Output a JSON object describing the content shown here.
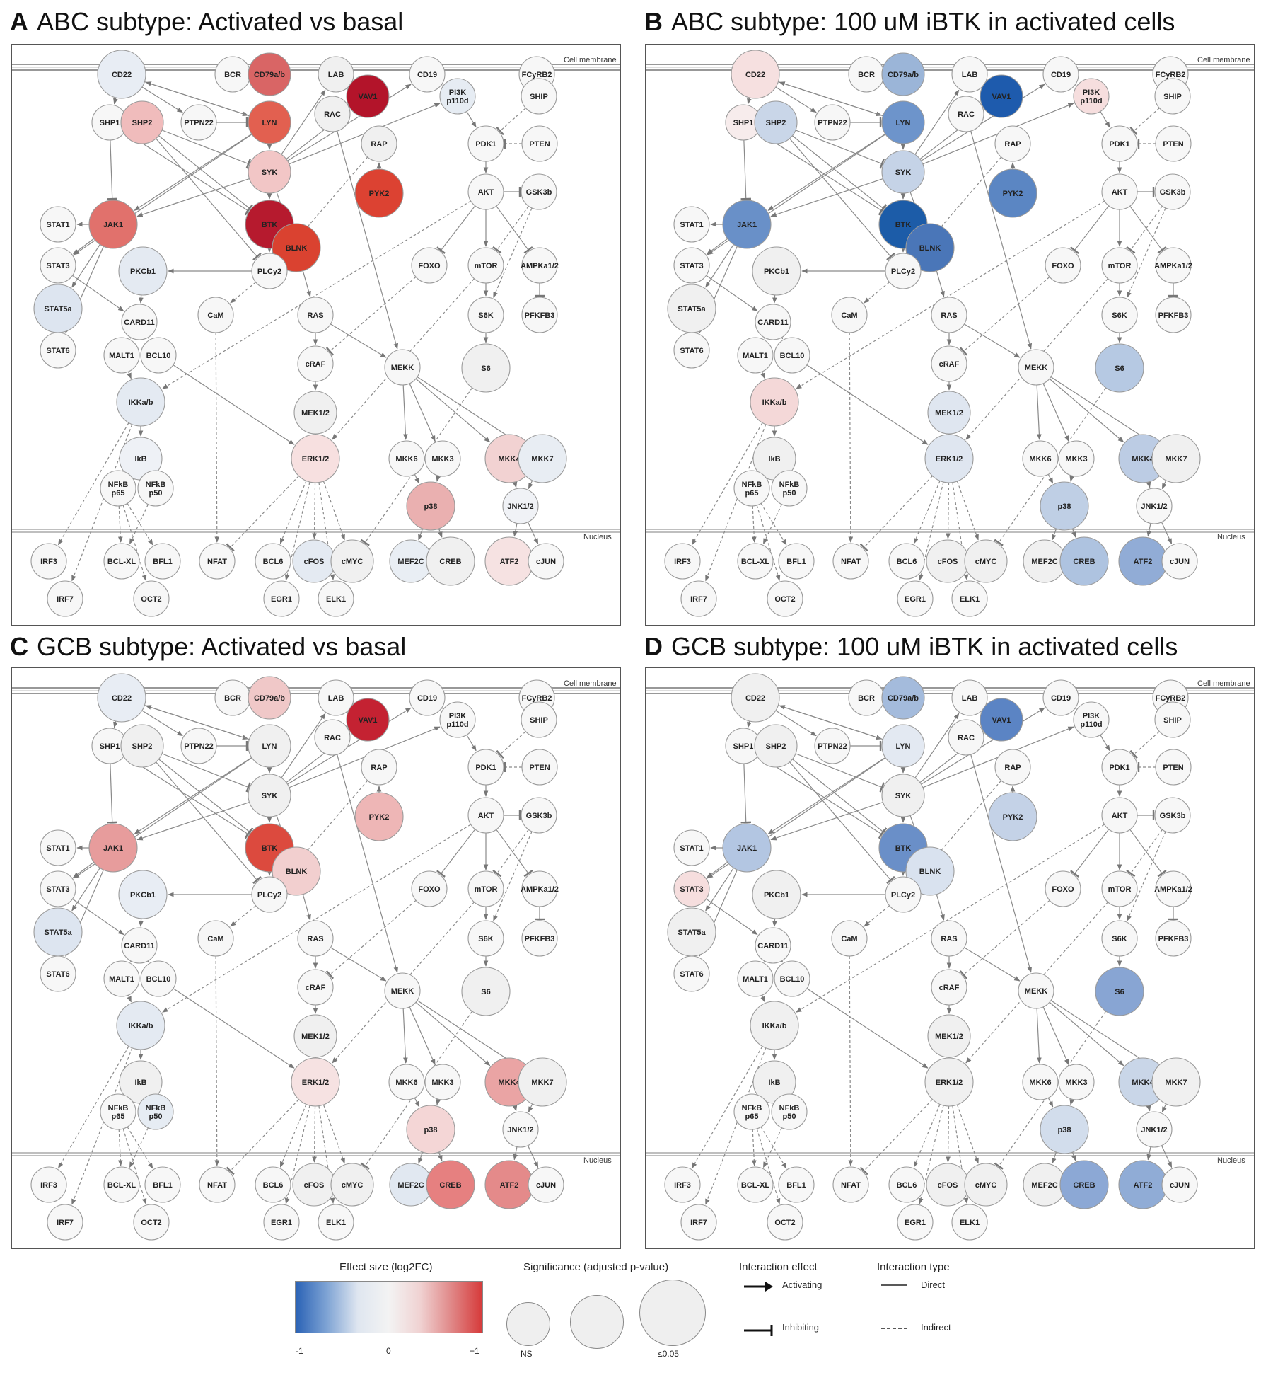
{
  "panels": [
    {
      "id": "A",
      "letter": "A",
      "title": "ABC subtype: Activated vs basal",
      "colors": {
        "CD22": "#e8edf4",
        "CD79a/b": "#d96565",
        "LAB": "#f0f0f0",
        "VAV1": "#b3142a",
        "CD19": "#f7f7f7",
        "SHP1": "#f7f7f7",
        "SHP2": "#f0bcbc",
        "LYN": "#e26050",
        "RAC": "#f0f0f0",
        "PI3K p110d": "#e6ecf3",
        "SYK": "#f2c6c6",
        "RAP": "#f0f0f0",
        "PYK2": "#dc4232",
        "JAK1": "#e1716c",
        "BTK": "#b61a2e",
        "BLNK": "#da4230",
        "STAT5a": "#dde5f0",
        "PKCb1": "#e4eaf2",
        "IKKa/b": "#e4eaf2",
        "IkB": "#eef1f6",
        "ERK1/2": "#f7e0e0",
        "MKK4": "#f2d2d2",
        "MKK7": "#e8edf3",
        "p38": "#eab0b0",
        "JNK1/2": "#f0f2f6",
        "cFOS": "#e4eaf2",
        "MEF2C": "#e9eef4",
        "ATF2": "#f6e2e2"
      }
    },
    {
      "id": "B",
      "letter": "B",
      "title": "ABC subtype: 100 uM iBTK in activated cells",
      "colors": {
        "CD22": "#f6e0e0",
        "CD79a/b": "#9bb5d8",
        "VAV1": "#1e5bad",
        "PI3K p110d": "#f6dede",
        "SHP1": "#f7ecec",
        "SHP2": "#c9d6e8",
        "LYN": "#6d94cb",
        "SYK": "#c5d3e7",
        "PYK2": "#5b86c3",
        "JAK1": "#6990c8",
        "BTK": "#1c5ca8",
        "BLNK": "#4a76b8",
        "S6": "#b6c9e3",
        "IKKa/b": "#f4d8d8",
        "MEK1/2": "#dfe6f0",
        "ERK1/2": "#dfe6f0",
        "MKK4": "#bccce4",
        "p38": "#bfcfe5",
        "CREB": "#aec3e0",
        "ATF2": "#91acd6"
      }
    },
    {
      "id": "C",
      "letter": "C",
      "title": "GCB subtype: Activated vs basal",
      "colors": {
        "CD22": "#e8edf4",
        "CD79a/b": "#f0c8c8",
        "VAV1": "#c42232",
        "JAK1": "#e79c9c",
        "BTK": "#dc4a3e",
        "BLNK": "#f2cfcf",
        "PYK2": "#eeb6b6",
        "STAT5a": "#dde5f0",
        "PKCb1": "#e8edf4",
        "IKKa/b": "#e4eaf2",
        "NFkB p50": "#e6ecf3",
        "ERK1/2": "#f6e2e2",
        "MKK4": "#eaa4a4",
        "p38": "#f4d6d6",
        "MEF2C": "#e1e8f1",
        "CREB": "#e68080",
        "ATF2": "#e48a8a"
      }
    },
    {
      "id": "D",
      "letter": "D",
      "title": "GCB subtype: 100 uM iBTK in activated cells",
      "colors": {
        "CD79a/b": "#a4bbdc",
        "VAV1": "#5b84c4",
        "LYN": "#e3e9f2",
        "JAK1": "#b3c6e2",
        "STAT3": "#f6dede",
        "BTK": "#6a8fc8",
        "BLNK": "#d9e2ef",
        "PYK2": "#c4d2e7",
        "S6": "#88a5d3",
        "MKK4": "#c9d6e8",
        "p38": "#d2ddec",
        "CREB": "#8ca8d5",
        "ATF2": "#90acd6"
      }
    }
  ],
  "labels": {
    "membrane": "Cell membrane",
    "nucleus": "Nucleus"
  },
  "nodes": [
    {
      "id": "CD22",
      "label": "CD22",
      "size": "l"
    },
    {
      "id": "BCR",
      "label": "BCR",
      "size": "s"
    },
    {
      "id": "CD79a/b",
      "label": "CD79a/b",
      "size": "m"
    },
    {
      "id": "LAB",
      "label": "LAB",
      "size": "s"
    },
    {
      "id": "VAV1",
      "label": "VAV1",
      "size": "m"
    },
    {
      "id": "CD19",
      "label": "CD19",
      "size": "s"
    },
    {
      "id": "FCyRB2",
      "label": "FCyRB2",
      "size": "s"
    },
    {
      "id": "SHP1",
      "label": "SHP1",
      "size": "s"
    },
    {
      "id": "SHP2",
      "label": "SHP2",
      "size": "m"
    },
    {
      "id": "PTPN22",
      "label": "PTPN22",
      "size": "s"
    },
    {
      "id": "LYN",
      "label": "LYN",
      "size": "m"
    },
    {
      "id": "RAC",
      "label": "RAC",
      "size": "s"
    },
    {
      "id": "PI3K p110d",
      "label": "PI3K|p110d",
      "size": "s"
    },
    {
      "id": "SHIP",
      "label": "SHIP",
      "size": "s"
    },
    {
      "id": "RAP",
      "label": "RAP",
      "size": "s"
    },
    {
      "id": "PDK1",
      "label": "PDK1",
      "size": "s"
    },
    {
      "id": "PTEN",
      "label": "PTEN",
      "size": "s"
    },
    {
      "id": "SYK",
      "label": "SYK",
      "size": "m"
    },
    {
      "id": "PYK2",
      "label": "PYK2",
      "size": "l"
    },
    {
      "id": "AKT",
      "label": "AKT",
      "size": "s"
    },
    {
      "id": "GSK3b",
      "label": "GSK3b",
      "size": "s"
    },
    {
      "id": "STAT1",
      "label": "STAT1",
      "size": "s"
    },
    {
      "id": "JAK1",
      "label": "JAK1",
      "size": "l"
    },
    {
      "id": "BTK",
      "label": "BTK",
      "size": "l"
    },
    {
      "id": "BLNK",
      "label": "BLNK",
      "size": "l"
    },
    {
      "id": "STAT3",
      "label": "STAT3",
      "size": "s"
    },
    {
      "id": "PKCb1",
      "label": "PKCb1",
      "size": "l"
    },
    {
      "id": "PLCy2",
      "label": "PLCy2",
      "size": "s"
    },
    {
      "id": "FOXO",
      "label": "FOXO",
      "size": "s"
    },
    {
      "id": "mTOR",
      "label": "mTOR",
      "size": "s"
    },
    {
      "id": "AMPKa1/2",
      "label": "AMPKa1/2",
      "size": "s"
    },
    {
      "id": "STAT5a",
      "label": "STAT5a",
      "size": "l"
    },
    {
      "id": "CARD11",
      "label": "CARD11",
      "size": "s"
    },
    {
      "id": "CaM",
      "label": "CaM",
      "size": "s"
    },
    {
      "id": "RAS",
      "label": "RAS",
      "size": "s"
    },
    {
      "id": "S6K",
      "label": "S6K",
      "size": "s"
    },
    {
      "id": "PFKFB3",
      "label": "PFKFB3",
      "size": "s"
    },
    {
      "id": "STAT6",
      "label": "STAT6",
      "size": "s"
    },
    {
      "id": "MALT1",
      "label": "MALT1",
      "size": "s"
    },
    {
      "id": "BCL10",
      "label": "BCL10",
      "size": "s"
    },
    {
      "id": "cRAF",
      "label": "cRAF",
      "size": "s"
    },
    {
      "id": "MEKK",
      "label": "MEKK",
      "size": "s"
    },
    {
      "id": "S6",
      "label": "S6",
      "size": "l"
    },
    {
      "id": "IKKa/b",
      "label": "IKKa/b",
      "size": "l"
    },
    {
      "id": "MEK1/2",
      "label": "MEK1/2",
      "size": "m"
    },
    {
      "id": "IkB",
      "label": "IkB",
      "size": "m"
    },
    {
      "id": "ERK1/2",
      "label": "ERK1/2",
      "size": "l"
    },
    {
      "id": "MKK6",
      "label": "MKK6",
      "size": "s"
    },
    {
      "id": "MKK3",
      "label": "MKK3",
      "size": "s"
    },
    {
      "id": "MKK4",
      "label": "MKK4",
      "size": "l"
    },
    {
      "id": "MKK7",
      "label": "MKK7",
      "size": "l"
    },
    {
      "id": "NFkB p65",
      "label": "NFkB|p65",
      "size": "s"
    },
    {
      "id": "NFkB p50",
      "label": "NFkB|p50",
      "size": "s"
    },
    {
      "id": "p38",
      "label": "p38",
      "size": "l"
    },
    {
      "id": "JNK1/2",
      "label": "JNK1/2",
      "size": "s"
    },
    {
      "id": "IRF3",
      "label": "IRF3",
      "size": "s"
    },
    {
      "id": "BCL-XL",
      "label": "BCL-XL",
      "size": "s"
    },
    {
      "id": "BFL1",
      "label": "BFL1",
      "size": "s"
    },
    {
      "id": "NFAT",
      "label": "NFAT",
      "size": "s"
    },
    {
      "id": "BCL6",
      "label": "BCL6",
      "size": "s"
    },
    {
      "id": "cFOS",
      "label": "cFOS",
      "size": "m"
    },
    {
      "id": "cMYC",
      "label": "cMYC",
      "size": "m"
    },
    {
      "id": "MEF2C",
      "label": "MEF2C",
      "size": "m"
    },
    {
      "id": "CREB",
      "label": "CREB",
      "size": "l"
    },
    {
      "id": "ATF2",
      "label": "ATF2",
      "size": "l"
    },
    {
      "id": "cJUN",
      "label": "cJUN",
      "size": "s"
    },
    {
      "id": "IRF7",
      "label": "IRF7",
      "size": "s"
    },
    {
      "id": "OCT2",
      "label": "OCT2",
      "size": "s"
    },
    {
      "id": "EGR1",
      "label": "EGR1",
      "size": "s"
    },
    {
      "id": "ELK1",
      "label": "ELK1",
      "size": "s"
    }
  ],
  "edges": [
    [
      "CD22",
      "SHP1",
      "a",
      "d"
    ],
    [
      "CD22",
      "PTPN22",
      "a",
      "d"
    ],
    [
      "CD22",
      "LYN",
      "a",
      "d"
    ],
    [
      "SHP1",
      "JAK1",
      "i",
      "d"
    ],
    [
      "SHP2",
      "BTK",
      "i",
      "d"
    ],
    [
      "SHP2",
      "SYK",
      "i",
      "d"
    ],
    [
      "SHP2",
      "PLCy2",
      "i",
      "d"
    ],
    [
      "SHP1",
      "BTK",
      "i",
      "d"
    ],
    [
      "PTPN22",
      "LYN",
      "i",
      "d"
    ],
    [
      "LYN",
      "CD22",
      "a",
      "d"
    ],
    [
      "LYN",
      "SYK",
      "a",
      "d"
    ],
    [
      "LYN",
      "JAK1",
      "a",
      "d"
    ],
    [
      "LYN",
      "STAT3",
      "a",
      "d"
    ],
    [
      "SYK",
      "VAV1",
      "a",
      "d"
    ],
    [
      "SYK",
      "CD19",
      "a",
      "d"
    ],
    [
      "SYK",
      "PI3K p110d",
      "a",
      "d"
    ],
    [
      "SYK",
      "BTK",
      "a",
      "d"
    ],
    [
      "SYK",
      "JAK1",
      "a",
      "d"
    ],
    [
      "SYK",
      "BLNK",
      "a",
      "d"
    ],
    [
      "SYK",
      "LAB",
      "a",
      "d"
    ],
    [
      "VAV1",
      "RAC",
      "a",
      "d"
    ],
    [
      "RAC",
      "MEKK",
      "a",
      "d"
    ],
    [
      "RAC",
      "VAV1",
      "a",
      "d"
    ],
    [
      "CD19",
      "PI3K p110d",
      "a",
      "d"
    ],
    [
      "PI3K p110d",
      "PDK1",
      "a",
      "d"
    ],
    [
      "SHIP",
      "PDK1",
      "i",
      "n"
    ],
    [
      "PTEN",
      "PDK1",
      "i",
      "n"
    ],
    [
      "PDK1",
      "AKT",
      "a",
      "d"
    ],
    [
      "AKT",
      "GSK3b",
      "i",
      "d"
    ],
    [
      "AKT",
      "mTOR",
      "a",
      "d"
    ],
    [
      "AKT",
      "FOXO",
      "i",
      "d"
    ],
    [
      "AKT",
      "AMPKa1/2",
      "i",
      "d"
    ],
    [
      "AKT",
      "IKKa/b",
      "a",
      "n"
    ],
    [
      "AKT",
      "RAF_dummy",
      "x",
      "x"
    ],
    [
      "mTOR",
      "S6K",
      "a",
      "d"
    ],
    [
      "S6K",
      "S6",
      "a",
      "d"
    ],
    [
      "AMPKa1/2",
      "PFKFB3",
      "i",
      "d"
    ],
    [
      "GSK3b",
      "S6K",
      "a",
      "n"
    ],
    [
      "GSK3b",
      "mTOR",
      "i",
      "n"
    ],
    [
      "BTK",
      "PLCy2",
      "a",
      "d"
    ],
    [
      "BLNK",
      "RAS",
      "a",
      "d"
    ],
    [
      "BLNK",
      "PLCy2",
      "a",
      "d"
    ],
    [
      "PLCy2",
      "PKCb1",
      "a",
      "d"
    ],
    [
      "PLCy2",
      "CaM",
      "a",
      "n"
    ],
    [
      "PYK2",
      "RAP",
      "a",
      "d"
    ],
    [
      "RAP",
      "PLCy2",
      "a",
      "n"
    ],
    [
      "JAK1",
      "STAT1",
      "a",
      "d"
    ],
    [
      "JAK1",
      "STAT3",
      "a",
      "d"
    ],
    [
      "JAK1",
      "STAT5a",
      "a",
      "d"
    ],
    [
      "JAK1",
      "STAT6",
      "a",
      "d"
    ],
    [
      "STAT3",
      "CARD11",
      "a",
      "d"
    ],
    [
      "PKCb1",
      "CARD11",
      "a",
      "d"
    ],
    [
      "CARD11",
      "MALT1",
      "a",
      "d"
    ],
    [
      "CARD11",
      "BCL10",
      "a",
      "d"
    ],
    [
      "MALT1",
      "IKKa/b",
      "a",
      "d"
    ],
    [
      "BCL10",
      "ERK1/2",
      "a",
      "d"
    ],
    [
      "IKKa/b",
      "IkB",
      "a",
      "d"
    ],
    [
      "IkB",
      "NFkB p65",
      "a",
      "d"
    ],
    [
      "IkB",
      "NFkB p50",
      "a",
      "d"
    ],
    [
      "RAS",
      "cRAF",
      "a",
      "d"
    ],
    [
      "RAS",
      "MEKK",
      "a",
      "d"
    ],
    [
      "cRAF",
      "MEK1/2",
      "a",
      "d"
    ],
    [
      "MEK1/2",
      "ERK1/2",
      "a",
      "d"
    ],
    [
      "FOXO",
      "cRAF",
      "i",
      "n"
    ],
    [
      "mTOR",
      "ERK1/2",
      "a",
      "n"
    ],
    [
      "MEKK",
      "MKK6",
      "a",
      "d"
    ],
    [
      "MEKK",
      "MKK3",
      "a",
      "d"
    ],
    [
      "MEKK",
      "MKK4",
      "a",
      "d"
    ],
    [
      "MEKK",
      "MKK7",
      "a",
      "d"
    ],
    [
      "MKK6",
      "p38",
      "a",
      "d"
    ],
    [
      "MKK3",
      "p38",
      "a",
      "d"
    ],
    [
      "MKK4",
      "JNK1/2",
      "a",
      "d"
    ],
    [
      "MKK7",
      "JNK1/2",
      "a",
      "d"
    ],
    [
      "S6",
      "cMYC",
      "i",
      "n"
    ],
    [
      "JNK1/2",
      "ATF2",
      "a",
      "d"
    ],
    [
      "JNK1/2",
      "cJUN",
      "a",
      "d"
    ],
    [
      "p38",
      "MEF2C",
      "a",
      "d"
    ],
    [
      "p38",
      "CREB",
      "a",
      "d"
    ],
    [
      "ERK1/2",
      "BCL6",
      "a",
      "n"
    ],
    [
      "ERK1/2",
      "cFOS",
      "a",
      "n"
    ],
    [
      "ERK1/2",
      "cMYC",
      "a",
      "n"
    ],
    [
      "ERK1/2",
      "EGR1",
      "a",
      "n"
    ],
    [
      "ERK1/2",
      "ELK1",
      "a",
      "n"
    ],
    [
      "ERK1/2",
      "NFAT",
      "i",
      "n"
    ],
    [
      "CaM",
      "NFAT",
      "a",
      "n"
    ],
    [
      "IKKa/b",
      "IRF3",
      "a",
      "n"
    ],
    [
      "IKKa/b",
      "IRF7",
      "a",
      "n"
    ],
    [
      "NFkB p65",
      "BCL-XL",
      "a",
      "n"
    ],
    [
      "NFkB p65",
      "BFL1",
      "a",
      "n"
    ],
    [
      "NFkB p65",
      "OCT2",
      "a",
      "n"
    ],
    [
      "NFkB p50",
      "BCL-XL",
      "a",
      "n"
    ]
  ],
  "legend": {
    "effect_title": "Effect size (log2FC)",
    "effect_ticks": [
      "-1",
      "0",
      "+1"
    ],
    "sig_title": "Significance (adjusted p-value)",
    "sig_ticks": [
      "NS",
      "≤0.05"
    ],
    "interaction_effect_title": "Interaction effect",
    "activating": "Activating",
    "inhibiting": "Inhibiting",
    "interaction_type_title": "Interaction type",
    "direct": "Direct",
    "indirect": "Indirect"
  }
}
